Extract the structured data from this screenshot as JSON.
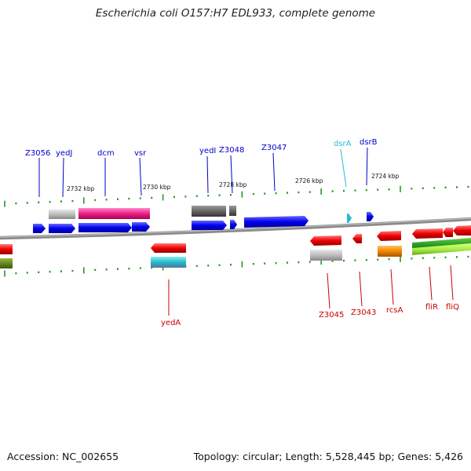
{
  "title": "Escherichia coli O157:H7 EDL933, complete genome",
  "footer": {
    "accession": "Accession: NC_002655",
    "summary": "Topology: circular; Length: 5,528,445 bp; Genes: 5,426"
  },
  "ruler": [
    "2732 kbp",
    "2730 kbp",
    "2728 kbp",
    "2726 kbp",
    "2724 kbp"
  ],
  "top_labels": [
    {
      "text": "Z3056",
      "color": "#0000cc"
    },
    {
      "text": "yedJ",
      "color": "#0000cc"
    },
    {
      "text": "dcm",
      "color": "#0000cc"
    },
    {
      "text": "vsr",
      "color": "#0000cc"
    },
    {
      "text": "yedI",
      "color": "#0000cc"
    },
    {
      "text": "Z3048",
      "color": "#0000cc"
    },
    {
      "text": "Z3047",
      "color": "#0000cc"
    },
    {
      "text": "dsrA",
      "color": "#22bbdd"
    },
    {
      "text": "dsrB",
      "color": "#0000cc"
    }
  ],
  "bottom_labels": [
    {
      "text": "yedA",
      "color": "#cc0000"
    },
    {
      "text": "Z3045",
      "color": "#cc0000"
    },
    {
      "text": "Z3043",
      "color": "#cc0000"
    },
    {
      "text": "rcsA",
      "color": "#cc0000"
    },
    {
      "text": "fliR",
      "color": "#cc0000"
    },
    {
      "text": "fliQ",
      "color": "#cc0000"
    }
  ],
  "colors": {
    "forward_gene": "#0000ee",
    "reverse_gene": "#ee0000",
    "backbone": "#777777",
    "ticks": "#229922"
  }
}
